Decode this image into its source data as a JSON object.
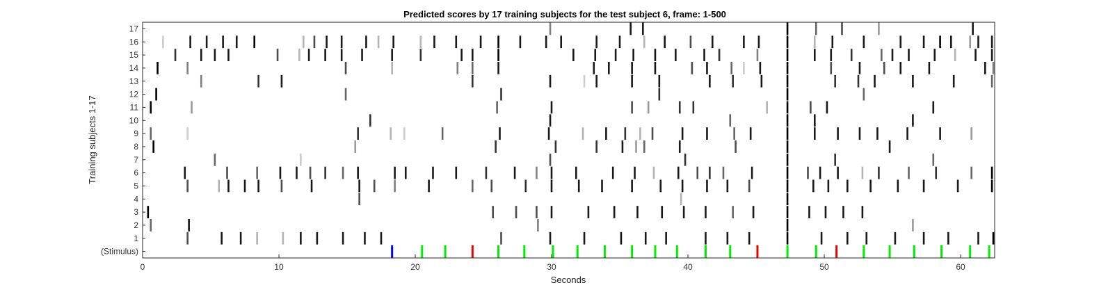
{
  "chart_data": {
    "type": "heatmap",
    "title": "Predicted scores by 17 training subjects for the test subject 6, frame: 1-500",
    "xlabel": "Seconds",
    "ylabel": "Training subjects 1-17",
    "xlim": [
      0,
      62.5
    ],
    "xticks": [
      0,
      10,
      20,
      30,
      40,
      50,
      60
    ],
    "xtick_labels": [
      "0",
      "10",
      "20",
      "30",
      "40",
      "50",
      "60"
    ],
    "row_labels": [
      "(Stimulus)",
      "1",
      "2",
      "3",
      "4",
      "5",
      "6",
      "7",
      "8",
      "9",
      "10",
      "11",
      "12",
      "13",
      "14",
      "15",
      "16",
      "17"
    ],
    "grid": false,
    "legend": "none",
    "colors": {
      "stimulus_blue": "#0000ff",
      "stimulus_green": "#00ee00",
      "stimulus_red": "#ee0000",
      "mark_dark": "#000000"
    },
    "stimulus": [
      {
        "t": 18.3,
        "color": "blue"
      },
      {
        "t": 20.5,
        "color": "green"
      },
      {
        "t": 22.2,
        "color": "green"
      },
      {
        "t": 24.2,
        "color": "red"
      },
      {
        "t": 26.1,
        "color": "green"
      },
      {
        "t": 28.0,
        "color": "green"
      },
      {
        "t": 30.1,
        "color": "green"
      },
      {
        "t": 31.9,
        "color": "green"
      },
      {
        "t": 33.9,
        "color": "green"
      },
      {
        "t": 35.9,
        "color": "green"
      },
      {
        "t": 37.6,
        "color": "green"
      },
      {
        "t": 39.2,
        "color": "green"
      },
      {
        "t": 41.3,
        "color": "green"
      },
      {
        "t": 43.1,
        "color": "green"
      },
      {
        "t": 45.1,
        "color": "red"
      },
      {
        "t": 47.3,
        "color": "green"
      },
      {
        "t": 49.4,
        "color": "green"
      },
      {
        "t": 50.9,
        "color": "red"
      },
      {
        "t": 52.9,
        "color": "green"
      },
      {
        "t": 54.8,
        "color": "green"
      },
      {
        "t": 56.6,
        "color": "green"
      },
      {
        "t": 58.6,
        "color": "green"
      },
      {
        "t": 60.7,
        "color": "green"
      },
      {
        "t": 62.1,
        "color": "green"
      }
    ],
    "subject_marks": {
      "1": [
        [
          3.3,
          0.7
        ],
        [
          5.8,
          0.9
        ],
        [
          7.2,
          0.9
        ],
        [
          8.4,
          0.3
        ],
        [
          10.3,
          0.3
        ],
        [
          11.6,
          0.9
        ],
        [
          12.8,
          0.9
        ],
        [
          14.7,
          0.9
        ],
        [
          16.3,
          0.9
        ],
        [
          17.5,
          0.9
        ],
        [
          26.3,
          0.7
        ],
        [
          29.9,
          0.9
        ],
        [
          32.4,
          0.9
        ],
        [
          35.1,
          0.9
        ],
        [
          36.9,
          0.9
        ],
        [
          38.4,
          0.9
        ],
        [
          41.3,
          0.9
        ],
        [
          42.9,
          0.9
        ],
        [
          44.5,
          0.9
        ],
        [
          47.3,
          1.0
        ],
        [
          49.8,
          0.9
        ],
        [
          51.7,
          0.9
        ],
        [
          53.1,
          0.9
        ],
        [
          55.2,
          0.9
        ],
        [
          57.3,
          0.9
        ],
        [
          59.1,
          0.9
        ],
        [
          61.3,
          0.9
        ],
        [
          62.4,
          1.0
        ]
      ],
      "2": [
        [
          0.6,
          0.6
        ],
        [
          3.4,
          0.9
        ],
        [
          29.0,
          0.5
        ],
        [
          47.3,
          1.0
        ],
        [
          56.5,
          0.4
        ]
      ],
      "3": [
        [
          0.4,
          1.0
        ],
        [
          25.7,
          0.7
        ],
        [
          27.4,
          0.7
        ],
        [
          28.9,
          0.7
        ],
        [
          30.0,
          0.9
        ],
        [
          32.7,
          0.9
        ],
        [
          34.6,
          0.9
        ],
        [
          36.3,
          0.9
        ],
        [
          38.1,
          0.9
        ],
        [
          39.7,
          0.9
        ],
        [
          41.3,
          0.9
        ],
        [
          43.3,
          0.6
        ],
        [
          44.8,
          0.9
        ],
        [
          47.3,
          1.0
        ],
        [
          48.9,
          0.9
        ],
        [
          50.1,
          0.9
        ],
        [
          51.4,
          0.9
        ],
        [
          52.8,
          0.9
        ]
      ],
      "4": [
        [
          15.9,
          0.7
        ],
        [
          39.5,
          0.3
        ],
        [
          47.3,
          1.0
        ]
      ],
      "5": [
        [
          3.3,
          0.7
        ],
        [
          5.6,
          0.3
        ],
        [
          6.3,
          0.9
        ],
        [
          7.5,
          0.9
        ],
        [
          8.5,
          0.9
        ],
        [
          10.2,
          0.7
        ],
        [
          12.4,
          0.9
        ],
        [
          15.9,
          0.9
        ],
        [
          17.0,
          0.7
        ],
        [
          18.5,
          0.5
        ],
        [
          21.0,
          0.9
        ],
        [
          24.2,
          0.6
        ],
        [
          25.6,
          0.7
        ],
        [
          28.1,
          0.8
        ],
        [
          30.0,
          0.9
        ],
        [
          32.0,
          0.9
        ],
        [
          33.7,
          0.9
        ],
        [
          35.9,
          0.9
        ],
        [
          38.0,
          0.9
        ],
        [
          39.6,
          0.9
        ],
        [
          41.4,
          0.9
        ],
        [
          42.9,
          0.9
        ],
        [
          44.5,
          0.7
        ],
        [
          47.3,
          1.0
        ],
        [
          49.2,
          0.9
        ],
        [
          50.3,
          0.9
        ],
        [
          51.7,
          0.9
        ],
        [
          53.4,
          0.9
        ],
        [
          55.4,
          0.9
        ],
        [
          57.3,
          0.9
        ],
        [
          59.8,
          0.9
        ],
        [
          62.3,
          1.0
        ]
      ],
      "6": [
        [
          3.1,
          0.9
        ],
        [
          6.2,
          0.7
        ],
        [
          8.4,
          0.6
        ],
        [
          10.1,
          0.9
        ],
        [
          11.3,
          0.9
        ],
        [
          12.3,
          0.7
        ],
        [
          13.4,
          0.8
        ],
        [
          14.7,
          0.6
        ],
        [
          15.8,
          0.9
        ],
        [
          18.5,
          0.9
        ],
        [
          19.3,
          0.9
        ],
        [
          21.3,
          0.9
        ],
        [
          23.0,
          0.9
        ],
        [
          25.2,
          0.8
        ],
        [
          27.3,
          0.9
        ],
        [
          28.9,
          0.5
        ],
        [
          30.0,
          0.9
        ],
        [
          31.8,
          0.9
        ],
        [
          34.5,
          0.9
        ],
        [
          36.1,
          0.9
        ],
        [
          37.5,
          0.3
        ],
        [
          39.3,
          0.9
        ],
        [
          40.7,
          0.7
        ],
        [
          41.6,
          0.8
        ],
        [
          42.6,
          0.6
        ],
        [
          44.7,
          0.9
        ],
        [
          47.3,
          1.0
        ],
        [
          48.8,
          0.7
        ],
        [
          49.7,
          0.9
        ],
        [
          51.0,
          0.9
        ],
        [
          52.8,
          0.3
        ],
        [
          54.0,
          0.8
        ],
        [
          56.2,
          0.6
        ],
        [
          58.2,
          0.8
        ],
        [
          60.8,
          0.6
        ],
        [
          62.3,
          1.0
        ]
      ],
      "7": [
        [
          5.3,
          0.6
        ],
        [
          11.6,
          0.2
        ],
        [
          29.9,
          0.7
        ],
        [
          39.8,
          0.8
        ],
        [
          47.3,
          1.0
        ],
        [
          50.8,
          0.8
        ],
        [
          58.0,
          0.6
        ]
      ],
      "8": [
        [
          0.8,
          1.0
        ],
        [
          15.6,
          0.4
        ],
        [
          25.9,
          0.8
        ],
        [
          30.3,
          0.8
        ],
        [
          33.3,
          0.8
        ],
        [
          35.2,
          0.9
        ],
        [
          36.2,
          0.4
        ],
        [
          36.8,
          0.6
        ],
        [
          39.4,
          0.9
        ],
        [
          43.5,
          0.7
        ],
        [
          47.3,
          1.0
        ],
        [
          54.8,
          0.9
        ]
      ],
      "9": [
        [
          0.6,
          0.6
        ],
        [
          3.3,
          0.2
        ],
        [
          15.8,
          0.8
        ],
        [
          18.2,
          0.3
        ],
        [
          19.2,
          0.2
        ],
        [
          22.0,
          0.6
        ],
        [
          26.2,
          0.9
        ],
        [
          29.8,
          0.9
        ],
        [
          32.3,
          0.3
        ],
        [
          34.0,
          0.9
        ],
        [
          35.4,
          0.8
        ],
        [
          36.5,
          0.3
        ],
        [
          37.4,
          0.7
        ],
        [
          39.6,
          0.9
        ],
        [
          41.4,
          0.9
        ],
        [
          43.4,
          0.6
        ],
        [
          44.6,
          0.9
        ],
        [
          47.3,
          1.0
        ],
        [
          49.3,
          0.9
        ],
        [
          51.0,
          0.9
        ],
        [
          52.6,
          0.9
        ],
        [
          53.9,
          0.9
        ],
        [
          56.1,
          0.9
        ],
        [
          58.5,
          0.9
        ],
        [
          60.8,
          0.4
        ]
      ],
      "10": [
        [
          16.7,
          0.8
        ],
        [
          29.9,
          0.9
        ],
        [
          43.1,
          0.6
        ],
        [
          47.3,
          1.0
        ],
        [
          49.3,
          0.9
        ],
        [
          56.5,
          0.9
        ]
      ],
      "11": [
        [
          0.6,
          1.0
        ],
        [
          3.6,
          0.4
        ],
        [
          26.0,
          0.6
        ],
        [
          30.0,
          0.9
        ],
        [
          35.9,
          0.7
        ],
        [
          37.1,
          0.4
        ],
        [
          39.4,
          0.8
        ],
        [
          40.4,
          0.8
        ],
        [
          45.8,
          0.3
        ],
        [
          47.3,
          1.0
        ],
        [
          49.0,
          0.7
        ],
        [
          50.2,
          0.9
        ],
        [
          58.0,
          0.9
        ]
      ],
      "12": [
        [
          1.0,
          1.0
        ],
        [
          14.9,
          0.6
        ],
        [
          26.3,
          0.8
        ],
        [
          37.9,
          0.8
        ],
        [
          47.3,
          1.0
        ],
        [
          52.9,
          0.6
        ]
      ],
      "13": [
        [
          4.3,
          0.5
        ],
        [
          8.5,
          0.8
        ],
        [
          10.2,
          0.9
        ],
        [
          24.2,
          0.8
        ],
        [
          29.9,
          0.9
        ],
        [
          32.4,
          0.2
        ],
        [
          33.3,
          0.9
        ],
        [
          35.9,
          0.9
        ],
        [
          37.9,
          0.9
        ],
        [
          41.6,
          0.9
        ],
        [
          43.3,
          0.8
        ],
        [
          45.4,
          0.9
        ],
        [
          47.3,
          1.0
        ],
        [
          50.8,
          0.8
        ],
        [
          52.5,
          0.8
        ],
        [
          53.7,
          0.9
        ],
        [
          56.5,
          0.9
        ],
        [
          59.5,
          0.9
        ],
        [
          62.3,
          0.6
        ]
      ],
      "14": [
        [
          1.1,
          1.0
        ],
        [
          3.3,
          0.5
        ],
        [
          14.9,
          0.7
        ],
        [
          18.3,
          0.3
        ],
        [
          23.1,
          0.5
        ],
        [
          24.2,
          0.6
        ],
        [
          26.1,
          0.9
        ],
        [
          33.1,
          0.9
        ],
        [
          34.2,
          0.9
        ],
        [
          35.9,
          0.9
        ],
        [
          37.6,
          0.9
        ],
        [
          40.3,
          0.7
        ],
        [
          41.4,
          0.9
        ],
        [
          43.2,
          0.6
        ],
        [
          44.1,
          0.2
        ],
        [
          45.3,
          0.9
        ],
        [
          47.3,
          1.0
        ],
        [
          50.5,
          0.7
        ],
        [
          52.6,
          0.9
        ],
        [
          54.4,
          0.7
        ],
        [
          55.6,
          0.9
        ],
        [
          57.7,
          0.9
        ],
        [
          61.8,
          0.9
        ],
        [
          62.4,
          0.5
        ]
      ],
      "15": [
        [
          2.4,
          0.8
        ],
        [
          4.3,
          0.9
        ],
        [
          5.3,
          0.9
        ],
        [
          6.3,
          0.9
        ],
        [
          9.9,
          0.7
        ],
        [
          11.5,
          0.3
        ],
        [
          12.2,
          0.9
        ],
        [
          13.4,
          0.9
        ],
        [
          14.6,
          0.9
        ],
        [
          16.1,
          0.9
        ],
        [
          18.3,
          0.9
        ],
        [
          20.4,
          0.8
        ],
        [
          23.4,
          0.9
        ],
        [
          24.2,
          0.9
        ],
        [
          26.1,
          1.0
        ],
        [
          31.6,
          0.9
        ],
        [
          33.2,
          0.9
        ],
        [
          34.7,
          0.9
        ],
        [
          36.0,
          0.9
        ],
        [
          37.6,
          0.9
        ],
        [
          39.1,
          0.9
        ],
        [
          41.2,
          0.9
        ],
        [
          42.3,
          0.8
        ],
        [
          45.1,
          0.5
        ],
        [
          47.3,
          1.0
        ],
        [
          49.3,
          0.9
        ],
        [
          50.5,
          0.9
        ],
        [
          52.0,
          0.8
        ],
        [
          54.2,
          0.6
        ],
        [
          55.0,
          0.9
        ],
        [
          56.2,
          0.9
        ],
        [
          58.1,
          0.9
        ],
        [
          59.6,
          0.3
        ],
        [
          61.1,
          0.9
        ],
        [
          62.3,
          0.9
        ]
      ],
      "16": [
        [
          1.5,
          0.2
        ],
        [
          3.5,
          0.9
        ],
        [
          4.7,
          0.9
        ],
        [
          5.9,
          0.9
        ],
        [
          6.9,
          0.9
        ],
        [
          8.2,
          1.0
        ],
        [
          11.8,
          0.3
        ],
        [
          12.6,
          0.7
        ],
        [
          13.5,
          0.9
        ],
        [
          14.6,
          0.9
        ],
        [
          16.4,
          0.9
        ],
        [
          17.3,
          0.3
        ],
        [
          18.4,
          0.9
        ],
        [
          20.4,
          0.3
        ],
        [
          21.4,
          0.9
        ],
        [
          23.0,
          0.9
        ],
        [
          24.8,
          0.9
        ],
        [
          26.1,
          1.0
        ],
        [
          27.7,
          0.9
        ],
        [
          29.6,
          0.9
        ],
        [
          30.7,
          0.9
        ],
        [
          33.3,
          0.9
        ],
        [
          35.0,
          0.9
        ],
        [
          36.8,
          0.3
        ],
        [
          38.3,
          0.9
        ],
        [
          40.2,
          0.7
        ],
        [
          41.8,
          0.9
        ],
        [
          44.1,
          0.9
        ],
        [
          45.2,
          0.9
        ],
        [
          47.3,
          1.0
        ],
        [
          49.3,
          0.3
        ],
        [
          50.6,
          0.9
        ],
        [
          52.9,
          0.9
        ],
        [
          55.6,
          0.9
        ],
        [
          57.3,
          0.9
        ],
        [
          58.5,
          1.0
        ],
        [
          59.3,
          0.9
        ],
        [
          60.7,
          0.4
        ],
        [
          61.3,
          0.9
        ],
        [
          62.3,
          0.9
        ]
      ],
      "17": [
        [
          29.9,
          0.5
        ],
        [
          35.8,
          0.9
        ],
        [
          36.7,
          0.9
        ],
        [
          47.3,
          1.0
        ],
        [
          49.4,
          0.6
        ],
        [
          51.3,
          0.7
        ],
        [
          54.0,
          0.4
        ],
        [
          60.9,
          0.9
        ]
      ]
    }
  }
}
